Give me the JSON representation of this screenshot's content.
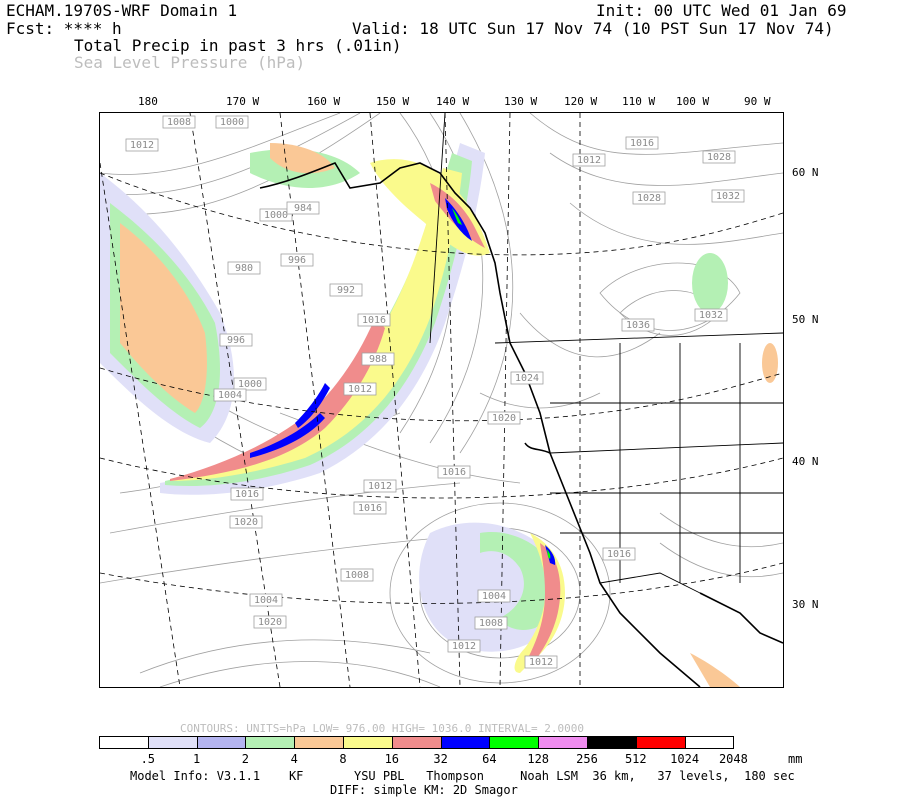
{
  "header": {
    "model": "ECHAM.1970S-WRF Domain 1",
    "init": "Init: 00 UTC Wed 01 Jan 69",
    "fcst": "Fcst: **** h",
    "valid": "Valid: 18 UTC Sun 17 Nov 74 (10 PST Sun 17 Nov 74)",
    "field1": "Total Precip in past 3 hrs (.01in)",
    "field2": "Sea Level Pressure (hPa)"
  },
  "axes": {
    "top_labels": [
      "180",
      "170 W",
      "160 W",
      "150 W",
      "140 W",
      "130 W",
      "120 W",
      "110 W",
      "100 W",
      "90 W"
    ],
    "right_labels": [
      "60 N",
      "50 N",
      "40 N",
      "30 N"
    ]
  },
  "isobar_labels": [
    "1008",
    "1000",
    "1012",
    "1012",
    "1016",
    "1028",
    "1028",
    "1032",
    "1036",
    "1032",
    "1024",
    "1020",
    "1016",
    "1016",
    "1012",
    "1008",
    "1004",
    "1000",
    "996",
    "992",
    "988",
    "984",
    "980",
    "996",
    "1000",
    "1004",
    "1012",
    "1016",
    "1020",
    "1020",
    "1004",
    "1008",
    "1012",
    "1012",
    "1016",
    "1016"
  ],
  "contours": {
    "text": "CONTOURS:  UNITS=hPa  LOW=  976.00          HIGH=  1036.0          INTERVAL=    2.0000"
  },
  "colorbar": {
    "colors": [
      "#ffffff",
      "#e0e0f8",
      "#b4b4f0",
      "#b4f0b4",
      "#fac896",
      "#fafa8c",
      "#f08c8c",
      "#0000ff",
      "#00ff00",
      "#f08cf0",
      "#000000",
      "#ff0000",
      "#ffffff"
    ],
    "labels": [
      ".5",
      "1",
      "2",
      "4",
      "8",
      "16",
      "32",
      "64",
      "128",
      "256",
      "512",
      "1024",
      "2048"
    ],
    "units": "mm"
  },
  "model_info": {
    "line1": "Model Info: V3.1.1    KF       YSU PBL   Thompson     Noah LSM  36 km,   37 levels,  180 sec",
    "line2": "DIFF: simple KM: 2D Smagor"
  }
}
